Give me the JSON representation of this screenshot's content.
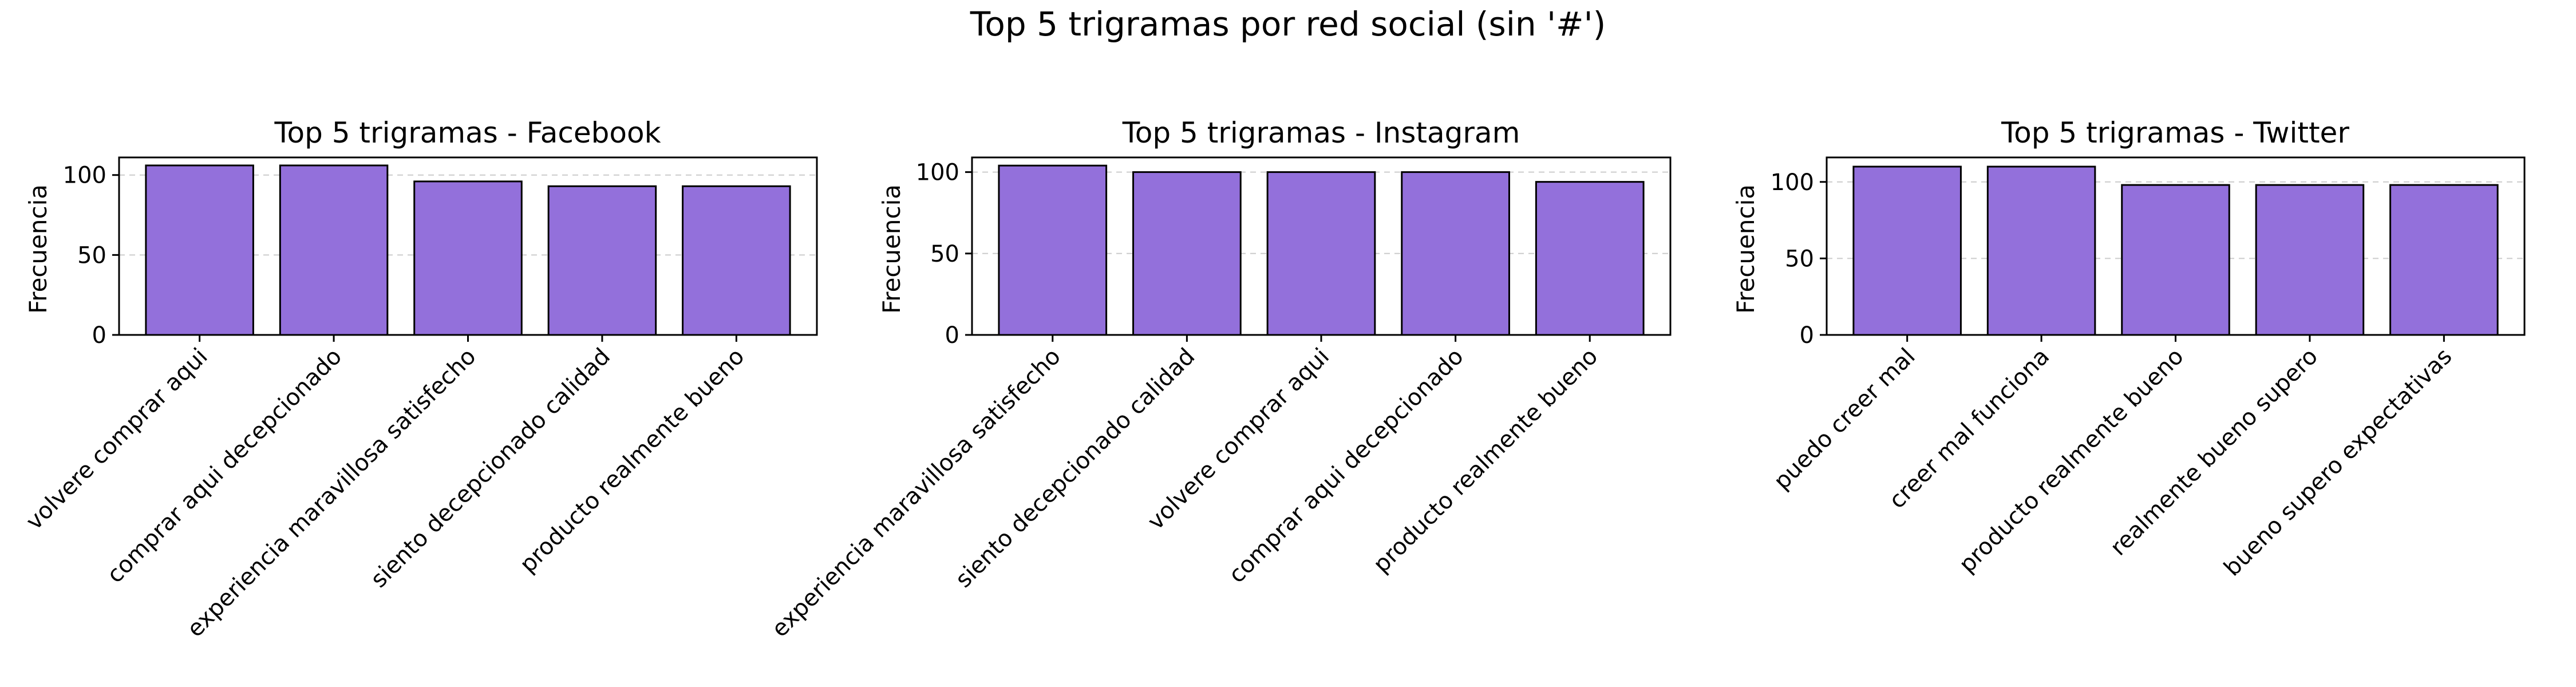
{
  "figure": {
    "suptitle": "Top 5 trigramas por red social (sin '#')",
    "bar_color": "#9370db",
    "bar_edge_color": "#000000",
    "grid_color": "#cccccc"
  },
  "chart_data": [
    {
      "type": "bar",
      "title": "Top 5 trigramas - Facebook",
      "xlabel": "",
      "ylabel": "Frecuencia",
      "categories": [
        "volvere comprar aqui",
        "comprar aqui decepcionado",
        "experiencia maravillosa satisfecho",
        "siento decepcionado calidad",
        "producto realmente bueno"
      ],
      "values": [
        106,
        106,
        96,
        93,
        93
      ],
      "yticks": [
        "0",
        "50",
        "100"
      ],
      "ylim": [
        0,
        111
      ],
      "grid": "y-dashed"
    },
    {
      "type": "bar",
      "title": "Top 5 trigramas - Instagram",
      "xlabel": "",
      "ylabel": "Frecuencia",
      "categories": [
        "experiencia maravillosa satisfecho",
        "siento decepcionado calidad",
        "volvere comprar aqui",
        "comprar aqui decepcionado",
        "producto realmente bueno"
      ],
      "values": [
        104,
        100,
        100,
        100,
        94
      ],
      "yticks": [
        "0",
        "50",
        "100"
      ],
      "ylim": [
        0,
        109
      ],
      "grid": "y-dashed"
    },
    {
      "type": "bar",
      "title": "Top 5 trigramas - Twitter",
      "xlabel": "",
      "ylabel": "Frecuencia",
      "categories": [
        "puedo creer mal",
        "creer mal funciona",
        "producto realmente bueno",
        "realmente bueno supero",
        "bueno supero expectativas"
      ],
      "values": [
        110,
        110,
        98,
        98,
        98
      ],
      "yticks": [
        "0",
        "50",
        "100"
      ],
      "ylim": [
        0,
        116
      ],
      "grid": "y-dashed"
    }
  ]
}
